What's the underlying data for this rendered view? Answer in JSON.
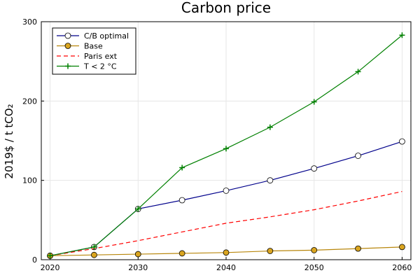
{
  "chart_data": {
    "type": "line",
    "title": "Carbon price",
    "xlabel": "",
    "ylabel": "2019$ / t tCO₂",
    "xlim": [
      2019,
      2061
    ],
    "ylim": [
      0,
      300
    ],
    "xticks": [
      2020,
      2030,
      2040,
      2050,
      2060
    ],
    "yticks": [
      0,
      100,
      200,
      300
    ],
    "grid": true,
    "legend_position": "top-left",
    "series": [
      {
        "name": "C/B optimal",
        "color": "#00008b",
        "marker": "circle-open",
        "dash": "solid",
        "x": [
          2020,
          2025,
          2030,
          2035,
          2040,
          2045,
          2050,
          2055,
          2060
        ],
        "y": [
          5,
          16,
          64,
          75,
          87,
          100,
          115,
          131,
          149
        ]
      },
      {
        "name": "Base",
        "color": "#b8860b",
        "marker_fill": "#daa520",
        "marker": "circle-filled",
        "dash": "solid",
        "x": [
          2020,
          2025,
          2030,
          2035,
          2040,
          2045,
          2050,
          2055,
          2060
        ],
        "y": [
          5,
          6,
          7,
          8,
          9,
          11,
          12,
          14,
          16
        ]
      },
      {
        "name": "Paris ext",
        "color": "#ff0000",
        "marker": "none",
        "dash": "dashed",
        "x": [
          2020,
          2025,
          2030,
          2035,
          2040,
          2045,
          2050,
          2055,
          2060
        ],
        "y": [
          5,
          14,
          24,
          35,
          46,
          54,
          63,
          74,
          86
        ]
      },
      {
        "name": "T < 2 °C",
        "color": "#008000",
        "marker": "cross",
        "dash": "solid",
        "x": [
          2020,
          2025,
          2030,
          2035,
          2040,
          2045,
          2050,
          2055,
          2060
        ],
        "y": [
          5,
          16,
          64,
          116,
          140,
          167,
          199,
          237,
          283
        ]
      }
    ]
  }
}
